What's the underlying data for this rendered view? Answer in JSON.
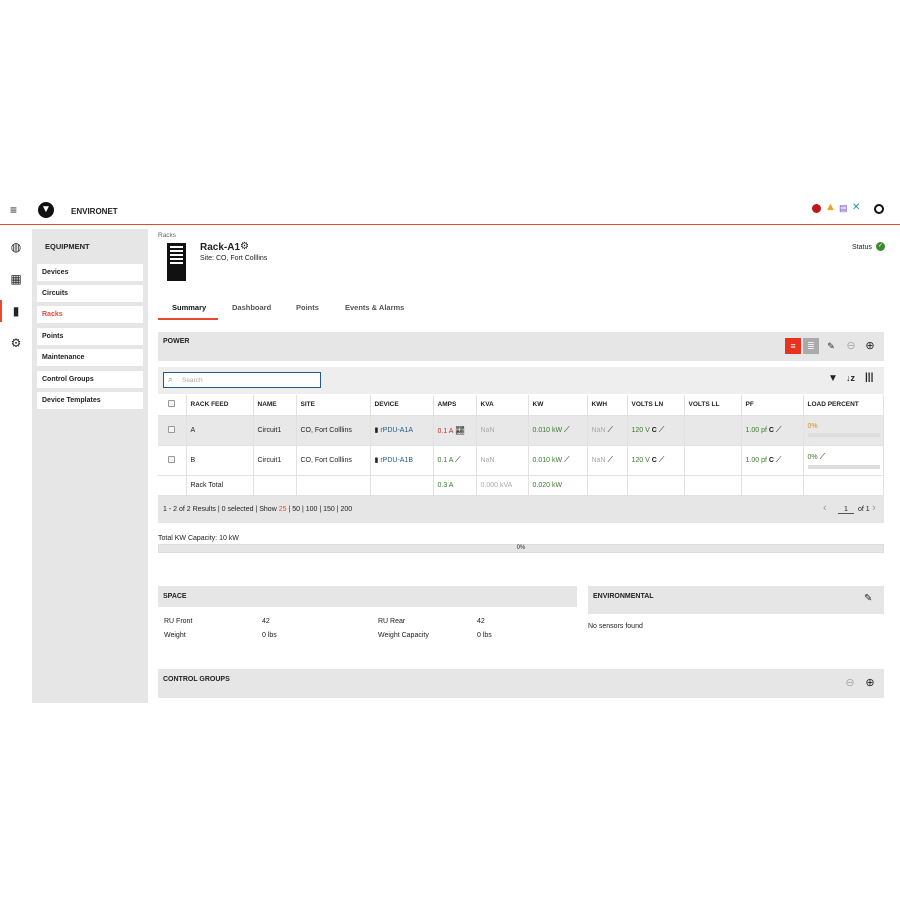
{
  "app": {
    "title": "ENVIRONET",
    "brand_color": "#e8492f"
  },
  "header_icons": [
    "alarm-critical-icon",
    "warning-icon",
    "device-icon",
    "tools-icon",
    "user-icon"
  ],
  "rail": [
    "dashboard-icon",
    "reports-icon",
    "rack-icon",
    "settings-icon"
  ],
  "sidebar": {
    "title": "EQUIPMENT",
    "items": [
      {
        "label": "Devices"
      },
      {
        "label": "Circuits"
      },
      {
        "label": "Racks",
        "active": true
      },
      {
        "label": "Points"
      },
      {
        "label": "Maintenance"
      },
      {
        "label": "Control Groups"
      },
      {
        "label": "Device Templates"
      }
    ]
  },
  "page": {
    "breadcrumb": "Racks",
    "title": "Rack-A1",
    "site": "Site: CO, Fort Colllins",
    "status_label": "Status"
  },
  "tabs": [
    {
      "label": "Summary",
      "active": true
    },
    {
      "label": "Dashboard"
    },
    {
      "label": "Points"
    },
    {
      "label": "Events & Alarms"
    }
  ],
  "power": {
    "title": "POWER",
    "search_placeholder": "Search",
    "columns": [
      "RACK FEED",
      "NAME",
      "SITE",
      "DEVICE",
      "AMPS",
      "KVA",
      "KW",
      "KWH",
      "VOLTS LN",
      "VOLTS LL",
      "PF",
      "LOAD PERCENT"
    ],
    "rows": [
      {
        "feed": "A",
        "name": "Circuit1",
        "site": "CO, Fort Colllins",
        "device": "rPDU-A1A",
        "amps": "0.1 A",
        "kva": "NaN",
        "kw": "0.010 kW",
        "kwh": "NaN",
        "volts_ln": "120 V",
        "volts_ll": "",
        "pf": "1.00 pf",
        "load": "0%",
        "load_value": 0
      },
      {
        "feed": "B",
        "name": "Circuit1",
        "site": "CO, Fort Colllins",
        "device": "rPDU-A1B",
        "amps": "0.1 A",
        "kva": "NaN",
        "kw": "0.010 kW",
        "kwh": "NaN",
        "volts_ln": "120 V",
        "volts_ll": "",
        "pf": "1.00 pf",
        "load": "0%",
        "load_value": 0
      }
    ],
    "total": {
      "label": "Rack Total",
      "amps": "0.3 A",
      "kva": "0.000 kVA",
      "kw": "0.020 kW"
    },
    "c_label": "C",
    "footer": {
      "results": "1 - 2 of 2 Results | 0 selected | Show ",
      "show_selected": "25",
      "show_rest": " | 50 | 100 | 150 | 200",
      "page": "1",
      "of": "of 1"
    }
  },
  "capacity": {
    "label": "Total KW Capacity: 10 kW",
    "percent": "0%",
    "value": 0
  },
  "space": {
    "title": "SPACE",
    "ru_front_label": "RU Front",
    "ru_front": "42",
    "weight_label": "Weight",
    "weight": "0 lbs",
    "ru_rear_label": "RU Rear",
    "ru_rear": "42",
    "weight_cap_label": "Weight Capacity",
    "weight_cap": "0 lbs"
  },
  "environmental": {
    "title": "ENVIRONMENTAL",
    "empty": "No sensors found"
  },
  "control_groups": {
    "title": "CONTROL GROUPS"
  }
}
